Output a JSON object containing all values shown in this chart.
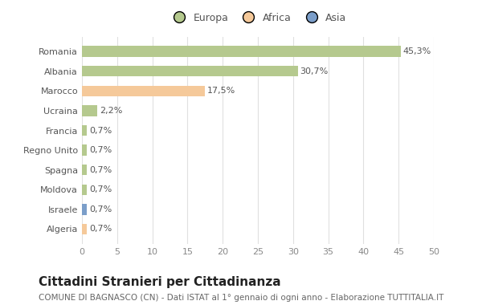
{
  "countries": [
    "Romania",
    "Albania",
    "Marocco",
    "Ucraina",
    "Francia",
    "Regno Unito",
    "Spagna",
    "Moldova",
    "Israele",
    "Algeria"
  ],
  "values": [
    45.3,
    30.7,
    17.5,
    2.2,
    0.7,
    0.7,
    0.7,
    0.7,
    0.7,
    0.7
  ],
  "labels": [
    "45,3%",
    "30,7%",
    "17,5%",
    "2,2%",
    "0,7%",
    "0,7%",
    "0,7%",
    "0,7%",
    "0,7%",
    "0,7%"
  ],
  "colors": [
    "#b5c98e",
    "#b5c98e",
    "#f5c99a",
    "#b5c98e",
    "#b5c98e",
    "#b5c98e",
    "#b5c98e",
    "#b5c98e",
    "#7b9ec9",
    "#f5c99a"
  ],
  "legend_labels": [
    "Europa",
    "Africa",
    "Asia"
  ],
  "legend_colors": [
    "#b5c98e",
    "#f5c99a",
    "#7b9ec9"
  ],
  "title": "Cittadini Stranieri per Cittadinanza",
  "subtitle": "COMUNE DI BAGNASCO (CN) - Dati ISTAT al 1° gennaio di ogni anno - Elaborazione TUTTITALIA.IT",
  "xlim": [
    0,
    50
  ],
  "xticks": [
    0,
    5,
    10,
    15,
    20,
    25,
    30,
    35,
    40,
    45,
    50
  ],
  "background_color": "#ffffff",
  "grid_color": "#e0e0e0",
  "bar_height": 0.55,
  "title_fontsize": 11,
  "subtitle_fontsize": 7.5,
  "label_fontsize": 8,
  "tick_fontsize": 8,
  "legend_fontsize": 9
}
